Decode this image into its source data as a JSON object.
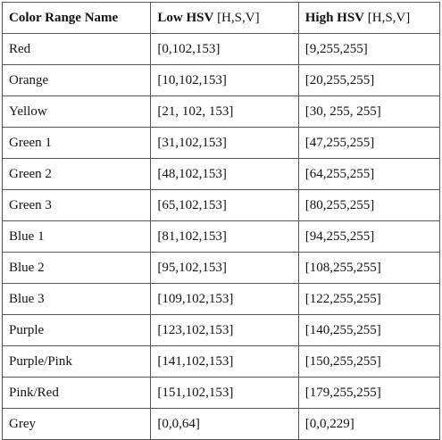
{
  "table": {
    "headers": [
      {
        "bold": "Color Range Name",
        "rest": ""
      },
      {
        "bold": "Low HSV",
        "rest": " [H,S,V]"
      },
      {
        "bold": "High HSV",
        "rest": " [H,S,V]"
      }
    ],
    "rows": [
      [
        "Red",
        "[0,102,153]",
        "[9,255,255]"
      ],
      [
        "Orange",
        "[10,102,153]",
        "[20,255,255]"
      ],
      [
        "Yellow",
        "[21, 102, 153]",
        "[30, 255, 255]"
      ],
      [
        "Green 1",
        "[31,102,153]",
        "[47,255,255]"
      ],
      [
        "Green 2",
        "[48,102,153]",
        "[64,255,255]"
      ],
      [
        "Green 3",
        "[65,102,153]",
        "[80,255,255]"
      ],
      [
        "Blue 1",
        "[81,102,153]",
        "[94,255,255]"
      ],
      [
        "Blue 2",
        "[95,102,153]",
        "[108,255,255]"
      ],
      [
        "Blue 3",
        "[109,102,153]",
        "[122,255,255]"
      ],
      [
        "Purple",
        "[123,102,153]",
        "[140,255,255]"
      ],
      [
        "Purple/Pink",
        "[141,102,153]",
        "[150,255,255]"
      ],
      [
        "Pink/Red",
        "[151,102,153]",
        "[179,255,255]"
      ],
      [
        "Grey",
        "[0,0,64]",
        "[0,0,229]"
      ]
    ]
  }
}
